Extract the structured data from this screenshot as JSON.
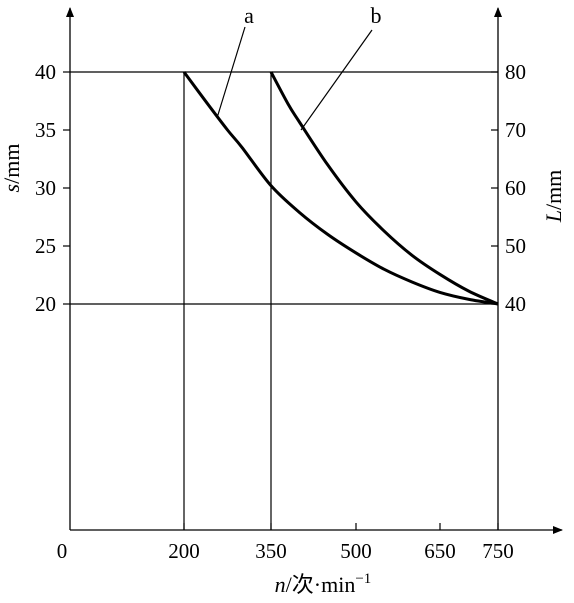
{
  "chart_data": {
    "type": "line",
    "title": "",
    "x_axis": {
      "label_var": "n",
      "label_rest": "/次·min",
      "label_exp": "−1",
      "range": [
        0,
        750
      ],
      "ticks": [
        0,
        200,
        350,
        500,
        650,
        750
      ],
      "tick_labels": [
        "0",
        "200",
        "350",
        "500",
        "650",
        "750"
      ]
    },
    "y_left": {
      "label_var": "s",
      "label_rest": "/mm",
      "range_visible": [
        20,
        40
      ],
      "ticks": [
        20,
        25,
        30,
        35,
        40
      ],
      "tick_labels": [
        "20",
        "25",
        "30",
        "35",
        "40"
      ]
    },
    "y_right": {
      "label_var": "L",
      "label_rest": "/mm",
      "ticks": [
        40,
        50,
        60,
        70,
        80
      ],
      "tick_labels": [
        "40",
        "50",
        "60",
        "70",
        "80"
      ]
    },
    "series": [
      {
        "name": "a",
        "axis": "left",
        "points": [
          [
            200,
            40
          ],
          [
            240,
            37.3
          ],
          [
            275,
            35
          ],
          [
            300,
            33.5
          ],
          [
            350,
            30.2
          ],
          [
            400,
            27.9
          ],
          [
            450,
            26.0
          ],
          [
            500,
            24.4
          ],
          [
            550,
            23.0
          ],
          [
            600,
            21.9
          ],
          [
            650,
            21.0
          ],
          [
            700,
            20.4
          ],
          [
            750,
            20
          ]
        ]
      },
      {
        "name": "b",
        "axis": "right",
        "points": [
          [
            350,
            80
          ],
          [
            380,
            74.5
          ],
          [
            400,
            71.4
          ],
          [
            450,
            64.0
          ],
          [
            500,
            57.6
          ],
          [
            550,
            52.6
          ],
          [
            600,
            48.4
          ],
          [
            650,
            45.1
          ],
          [
            700,
            42.2
          ],
          [
            750,
            40
          ]
        ]
      }
    ],
    "reference_lines": {
      "horizontal_left_values": [
        40,
        20
      ],
      "vertical_x_values": [
        200,
        350
      ]
    },
    "grid": false,
    "legend": "none"
  }
}
